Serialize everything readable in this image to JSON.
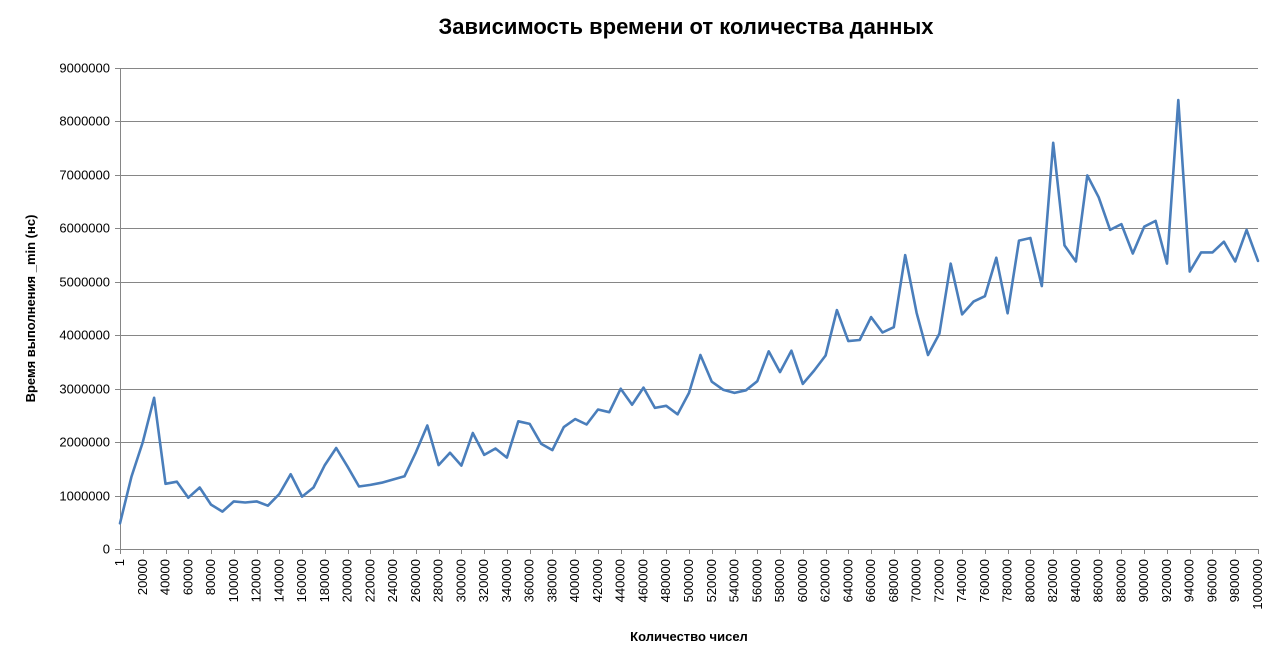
{
  "chart_data": {
    "type": "line",
    "title": "Зависимость времени от количества данных",
    "xlabel": "Количество чисел",
    "ylabel": "Время выполнения _min (нс)",
    "ylim": [
      0,
      9000000
    ],
    "yticks": [
      0,
      1000000,
      2000000,
      3000000,
      4000000,
      5000000,
      6000000,
      7000000,
      8000000,
      9000000
    ],
    "xtick_labels": [
      "1",
      "20000",
      "40000",
      "60000",
      "80000",
      "100000",
      "120000",
      "140000",
      "160000",
      "180000",
      "200000",
      "220000",
      "240000",
      "260000",
      "280000",
      "300000",
      "320000",
      "340000",
      "360000",
      "380000",
      "400000",
      "420000",
      "440000",
      "460000",
      "480000",
      "500000",
      "520000",
      "540000",
      "560000",
      "580000",
      "600000",
      "620000",
      "640000",
      "660000",
      "680000",
      "700000",
      "720000",
      "740000",
      "760000",
      "780000",
      "800000",
      "820000",
      "840000",
      "860000",
      "880000",
      "900000",
      "920000",
      "940000",
      "960000",
      "980000",
      "1000000"
    ],
    "grid": true,
    "legend": "none",
    "colors": {
      "line": "#4a7ebb",
      "grid": "#868686",
      "axis": "#868686"
    },
    "series": [
      {
        "x": [
          1,
          10000,
          20000,
          30000,
          40000,
          50000,
          60000,
          70000,
          80000,
          90000,
          100000,
          110000,
          120000,
          130000,
          140000,
          150000,
          160000,
          170000,
          180000,
          190000,
          200000,
          210000,
          220000,
          230000,
          240000,
          250000,
          260000,
          270000,
          280000,
          290000,
          300000,
          310000,
          320000,
          330000,
          340000,
          350000,
          360000,
          370000,
          380000,
          390000,
          400000,
          410000,
          420000,
          430000,
          440000,
          450000,
          460000,
          470000,
          480000,
          490000,
          500000,
          510000,
          520000,
          530000,
          540000,
          550000,
          560000,
          570000,
          580000,
          590000,
          600000,
          610000,
          620000,
          630000,
          640000,
          650000,
          660000,
          670000,
          680000,
          690000,
          700000,
          710000,
          720000,
          730000,
          740000,
          750000,
          760000,
          770000,
          780000,
          790000,
          800000,
          810000,
          820000,
          830000,
          840000,
          850000,
          860000,
          870000,
          880000,
          890000,
          900000,
          910000,
          920000,
          930000,
          940000,
          950000,
          960000,
          970000,
          980000,
          990000,
          1000000
        ],
        "values": [
          480000,
          1350000,
          2000000,
          2830000,
          1220000,
          1260000,
          960000,
          1150000,
          830000,
          700000,
          890000,
          870000,
          890000,
          810000,
          1030000,
          1400000,
          980000,
          1150000,
          1570000,
          1890000,
          1540000,
          1170000,
          1200000,
          1240000,
          1300000,
          1360000,
          1810000,
          2310000,
          1570000,
          1800000,
          1560000,
          2170000,
          1760000,
          1880000,
          1710000,
          2390000,
          2340000,
          1970000,
          1850000,
          2280000,
          2430000,
          2330000,
          2610000,
          2560000,
          3000000,
          2700000,
          3020000,
          2640000,
          2680000,
          2520000,
          2920000,
          3630000,
          3130000,
          2980000,
          2920000,
          2970000,
          3140000,
          3700000,
          3310000,
          3710000,
          3090000,
          3340000,
          3620000,
          4470000,
          3890000,
          3910000,
          4340000,
          4050000,
          4150000,
          5500000,
          4420000,
          3630000,
          4030000,
          5340000,
          4390000,
          4630000,
          4730000,
          5450000,
          4410000,
          5770000,
          5820000,
          4920000,
          7600000,
          5680000,
          5380000,
          6990000,
          6580000,
          5970000,
          6080000,
          5530000,
          6030000,
          6140000,
          5340000,
          8400000,
          5190000,
          5550000,
          5550000,
          5750000,
          5380000,
          5970000,
          5390000
        ]
      }
    ]
  }
}
